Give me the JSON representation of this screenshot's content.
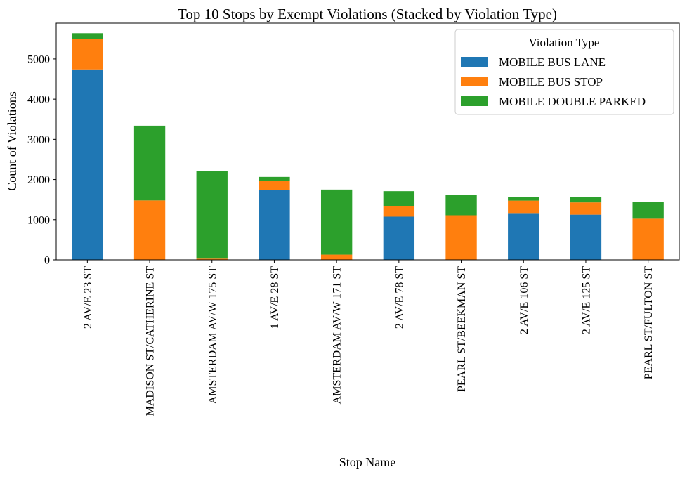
{
  "chart_data": {
    "type": "bar",
    "stacked": true,
    "title": "Top 10 Stops by Exempt Violations (Stacked by Violation Type)",
    "xlabel": "Stop Name",
    "ylabel": "Count of Violations",
    "ylim": [
      0,
      5890
    ],
    "yticks": [
      0,
      1000,
      2000,
      3000,
      4000,
      5000
    ],
    "legend": {
      "title": "Violation Type",
      "placement": "top-right"
    },
    "categories": [
      "2 AV/E 23 ST",
      "MADISON ST/CATHERINE ST",
      "AMSTERDAM AV/W 175 ST",
      "1 AV/E 28 ST",
      "AMSTERDAM AV/W 171 ST",
      "2 AV/E 78 ST",
      "PEARL ST/BEEKMAN ST",
      "2 AV/E 106 ST",
      "2 AV/E 125 ST",
      "PEARL ST/FULTON ST"
    ],
    "series": [
      {
        "name": "MOBILE BUS LANE",
        "color": "#1f77b4",
        "values": [
          4740,
          0,
          0,
          1740,
          0,
          1075,
          0,
          1165,
          1125,
          0
        ]
      },
      {
        "name": "MOBILE BUS STOP",
        "color": "#ff7f0e",
        "values": [
          750,
          1480,
          30,
          230,
          130,
          265,
          1110,
          310,
          305,
          1025
        ]
      },
      {
        "name": "MOBILE DOUBLE PARKED",
        "color": "#2ca02c",
        "values": [
          150,
          1860,
          2185,
          95,
          1620,
          370,
          500,
          95,
          140,
          425
        ]
      }
    ]
  }
}
